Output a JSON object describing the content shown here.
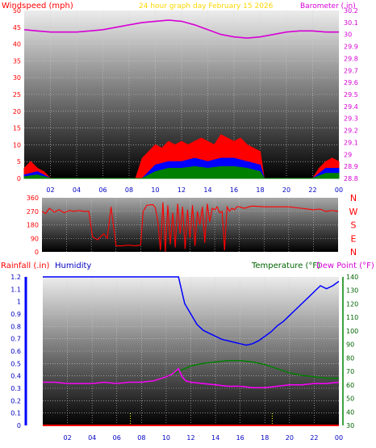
{
  "colors": {
    "wind_speed": "#ff0000",
    "wind_avg": "#0000ff",
    "wind_low": "#008000",
    "barometer": "#d600d6",
    "direction": "#ff0000",
    "humidity": "#0000ff",
    "temperature": "#ff00ff",
    "dewpoint": "#008000",
    "rainfall": "#0000ff",
    "grid": "#cccccc",
    "header_title": "#ffd700",
    "red_label": "#ff0000",
    "green_label": "#006400",
    "blue_label": "#0000c0",
    "magenta_label": "#d600d6"
  },
  "chart_data": [
    {
      "id": "wind",
      "type": "area",
      "title": "24 hour graph day   February 15 2026",
      "ylabel": "Windspeed (mph)",
      "y2label": "Barometer (.in)",
      "ylim": [
        0,
        50
      ],
      "yticks": [
        "0",
        "5",
        "10",
        "15",
        "20",
        "25",
        "30",
        "35",
        "40",
        "45",
        "50"
      ],
      "y2lim": [
        28.8,
        30.2
      ],
      "y2ticks": [
        "28.8",
        "28.9",
        "29",
        "29.1",
        "29.2",
        "29.3",
        "29.4",
        "29.5",
        "29.6",
        "29.7",
        "29.8",
        "29.9",
        "30",
        "30.1",
        "30.2"
      ],
      "xlim": [
        0,
        24
      ],
      "xticks": [
        "02",
        "04",
        "06",
        "08",
        "10",
        "12",
        "14",
        "16",
        "18",
        "20",
        "22",
        "00"
      ],
      "grid": true,
      "series": [
        {
          "key": "gust",
          "x": [
            0,
            0.5,
            1,
            1.5,
            2,
            2.5,
            3,
            4,
            5,
            6,
            7,
            8,
            8.5,
            9,
            9.5,
            10,
            10.5,
            11,
            11.5,
            12,
            12.5,
            13,
            13.5,
            14,
            14.5,
            15,
            15.5,
            16,
            16.5,
            17,
            17.5,
            18,
            18.3,
            19,
            20,
            21,
            22,
            22.5,
            23,
            23.5,
            24
          ],
          "y": [
            3,
            5,
            3,
            2,
            0,
            0,
            0,
            0,
            0,
            0,
            0,
            0,
            0,
            6,
            8,
            10,
            9,
            11,
            10,
            11,
            10,
            11,
            12,
            11,
            10,
            13,
            12,
            11,
            12,
            10,
            9,
            8,
            0,
            0,
            0,
            0,
            0,
            3,
            5,
            6,
            5
          ]
        },
        {
          "key": "average",
          "x": [
            0,
            1,
            2,
            9,
            10,
            11,
            12,
            13,
            14,
            15,
            16,
            17,
            18,
            18.3,
            22,
            23,
            24
          ],
          "y": [
            1,
            2,
            0,
            0,
            4,
            5,
            5,
            6,
            5,
            6,
            6,
            5,
            4,
            0,
            0,
            3,
            3
          ]
        },
        {
          "key": "low",
          "x": [
            0,
            1,
            2,
            9,
            10,
            11,
            12,
            13,
            14,
            15,
            16,
            17,
            18,
            18.3,
            22,
            23,
            24
          ],
          "y": [
            0.5,
            1,
            0,
            0,
            2,
            3,
            3,
            3.5,
            3,
            3.5,
            3.5,
            3,
            2,
            0,
            0,
            1.5,
            1.5
          ]
        },
        {
          "key": "barometer",
          "x": [
            0,
            1,
            2,
            3,
            4,
            5,
            6,
            7,
            8,
            9,
            10,
            11,
            12,
            13,
            14,
            15,
            16,
            17,
            18,
            19,
            20,
            21,
            22,
            23,
            24
          ],
          "y": [
            30.04,
            30.03,
            30.02,
            30.02,
            30.02,
            30.03,
            30.04,
            30.06,
            30.08,
            30.1,
            30.11,
            30.12,
            30.11,
            30.08,
            30.04,
            30.0,
            29.98,
            29.97,
            29.98,
            30.0,
            30.02,
            30.03,
            30.03,
            30.02,
            30.02
          ]
        }
      ]
    },
    {
      "id": "direction",
      "type": "line",
      "ylim": [
        0,
        360
      ],
      "yticks": [
        "0",
        "90",
        "180",
        "270",
        "360"
      ],
      "compass": [
        "N",
        "W",
        "S",
        "E",
        "N"
      ],
      "xlim": [
        0,
        24
      ],
      "grid": true,
      "series": [
        {
          "key": "direction",
          "x": [
            0,
            0.3,
            0.6,
            1,
            1.4,
            1.8,
            2.2,
            2.6,
            3,
            3.4,
            3.8,
            4.1,
            4.5,
            5,
            5.3,
            5.6,
            6,
            6.5,
            7,
            7.5,
            8,
            8.2,
            8.5,
            9,
            9.2,
            9.4,
            9.6,
            9.8,
            10,
            10.2,
            10.4,
            10.6,
            10.8,
            11,
            11.2,
            11.4,
            11.6,
            11.8,
            12,
            12.2,
            12.4,
            12.6,
            12.8,
            13,
            13.2,
            13.4,
            13.6,
            13.8,
            14,
            14.2,
            14.4,
            14.6,
            14.8,
            15,
            15.2,
            15.4,
            15.6,
            15.8,
            16,
            16.4,
            17,
            18,
            19,
            20,
            21,
            22,
            22.5,
            23,
            23.5,
            24
          ],
          "y": [
            270,
            255,
            290,
            265,
            280,
            260,
            275,
            270,
            275,
            270,
            270,
            100,
            80,
            120,
            90,
            300,
            40,
            40,
            45,
            40,
            45,
            270,
            310,
            315,
            290,
            200,
            10,
            330,
            0,
            310,
            50,
            260,
            30,
            320,
            120,
            300,
            20,
            280,
            90,
            310,
            40,
            270,
            180,
            300,
            60,
            320,
            200,
            290,
            280,
            300,
            260,
            270,
            10,
            300,
            270,
            290,
            280,
            300,
            300,
            290,
            305,
            300,
            300,
            300,
            290,
            280,
            285,
            270,
            275,
            270
          ]
        }
      ]
    },
    {
      "id": "temp",
      "type": "line",
      "ylabel": "Rainfall (.in)",
      "ylabel2": "Humidity",
      "y2label": "Temperature (°F)",
      "y2label2": "Dew Point (°F)",
      "ylim": [
        0,
        1.2
      ],
      "yticks": [
        "0",
        "0.1",
        "0.2",
        "0.3",
        "0.4",
        "0.5",
        "0.6",
        "0.7",
        "0.8",
        "0.9",
        "1",
        "1.1",
        "1.2"
      ],
      "y2lim": [
        30,
        140
      ],
      "y2ticks": [
        "30",
        "40",
        "50",
        "60",
        "70",
        "80",
        "90",
        "100",
        "110",
        "120",
        "130",
        "140"
      ],
      "xlim": [
        0,
        24
      ],
      "xticks": [
        "02",
        "04",
        "06",
        "08",
        "10",
        "12",
        "14",
        "16",
        "18",
        "20",
        "22",
        "00"
      ],
      "grid": true,
      "series": [
        {
          "key": "humidity",
          "x": [
            0,
            1,
            2,
            3,
            4,
            5,
            6,
            7,
            8,
            9,
            10,
            10.5,
            11,
            11.5,
            12,
            12.5,
            13,
            13.5,
            14,
            14.5,
            15,
            15.5,
            16,
            16.5,
            17,
            17.5,
            18,
            18.5,
            19,
            19.5,
            20,
            20.5,
            21,
            21.5,
            22,
            22.5,
            23,
            23.5,
            24
          ],
          "y": [
            100,
            100,
            100,
            100,
            100,
            100,
            100,
            100,
            100,
            100,
            100,
            100,
            100,
            82,
            75,
            68,
            64,
            62,
            60,
            58,
            57,
            56,
            55,
            54,
            55,
            57,
            60,
            63,
            67,
            70,
            74,
            78,
            82,
            86,
            90,
            94,
            92,
            94,
            97
          ]
        },
        {
          "key": "temperature",
          "x": [
            0,
            1,
            2,
            3,
            4,
            5,
            6,
            7,
            8,
            9,
            10,
            10.5,
            11,
            11.3,
            11.6,
            12,
            13,
            14,
            15,
            16,
            17,
            18,
            19,
            20,
            21,
            22,
            23,
            24
          ],
          "y": [
            62,
            62,
            61,
            61,
            61,
            62,
            61,
            62,
            62,
            63,
            66,
            68,
            72,
            66,
            63,
            62,
            61,
            60,
            59,
            59,
            58,
            58,
            59,
            60,
            60,
            61,
            61,
            62
          ]
        },
        {
          "key": "dewpoint",
          "x": [
            0,
            1,
            2,
            3,
            4,
            5,
            6,
            7,
            8,
            9,
            10,
            11,
            12,
            13,
            14,
            15,
            16,
            17,
            18,
            19,
            20,
            21,
            22,
            23,
            24
          ],
          "y": [
            62,
            62,
            61,
            61,
            61,
            62,
            61,
            62,
            62,
            63,
            66,
            70,
            74,
            76,
            77,
            78,
            78,
            77,
            75,
            72,
            69,
            67,
            66,
            65,
            65
          ]
        },
        {
          "key": "rainfall",
          "x": [
            0,
            24
          ],
          "y": [
            0,
            0
          ]
        }
      ]
    }
  ]
}
